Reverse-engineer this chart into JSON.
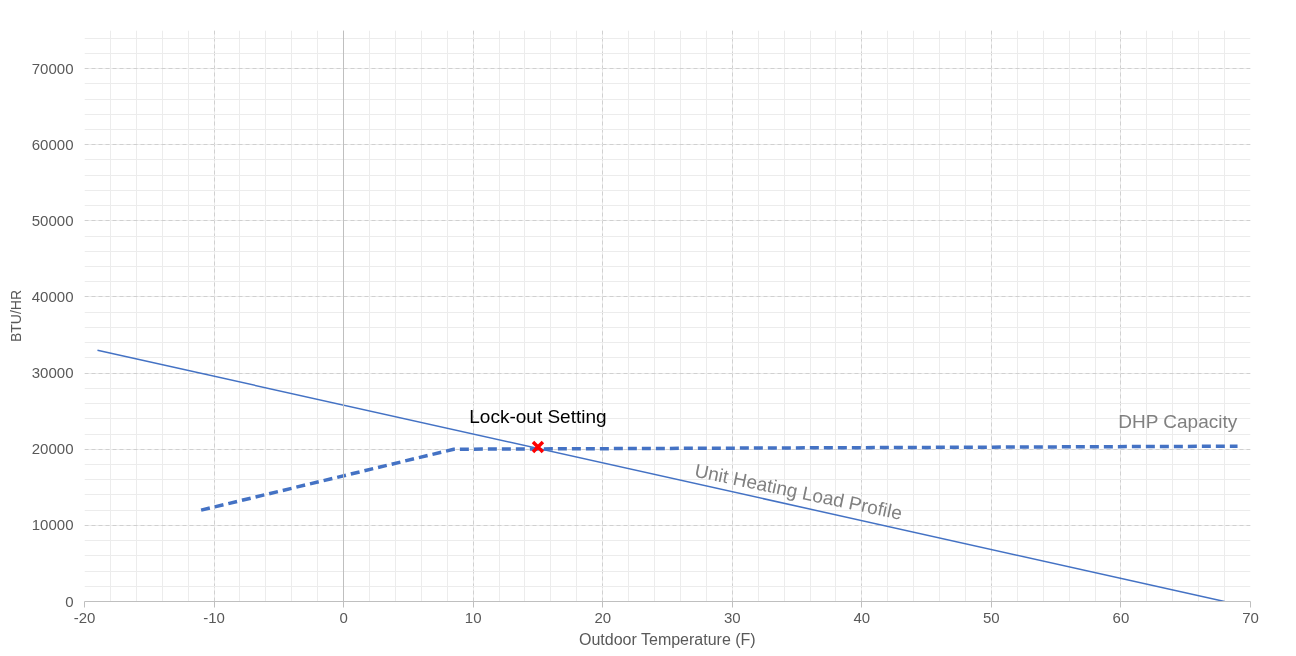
{
  "chart_data": {
    "type": "line",
    "xlabel": "Outdoor Temperature (F)",
    "ylabel": "BTU/HR",
    "xlim": [
      -20,
      70
    ],
    "ylim": [
      0,
      75000
    ],
    "xticks": [
      -20,
      -10,
      0,
      10,
      20,
      30,
      40,
      50,
      60,
      70
    ],
    "yticks": [
      0,
      10000,
      20000,
      30000,
      40000,
      50000,
      60000,
      70000
    ],
    "grid": true,
    "series": [
      {
        "name": "Unit Heating Load Profile",
        "color": "#4472c4",
        "line_style": "solid",
        "x": [
          -19,
          68
        ],
        "values": [
          33000,
          0
        ]
      },
      {
        "name": "DHP Capacity",
        "color": "#4472c4",
        "line_style": "dashed",
        "x": [
          -11,
          8.5,
          69
        ],
        "values": [
          12000,
          20000,
          20400
        ]
      },
      {
        "type": "scatter",
        "color": "#ff0000",
        "marker": "cross",
        "x": [
          15
        ],
        "values": [
          20300
        ]
      }
    ],
    "annotations": [
      {
        "text": "Lock-out Setting",
        "x": 15,
        "y": 20300
      }
    ]
  }
}
